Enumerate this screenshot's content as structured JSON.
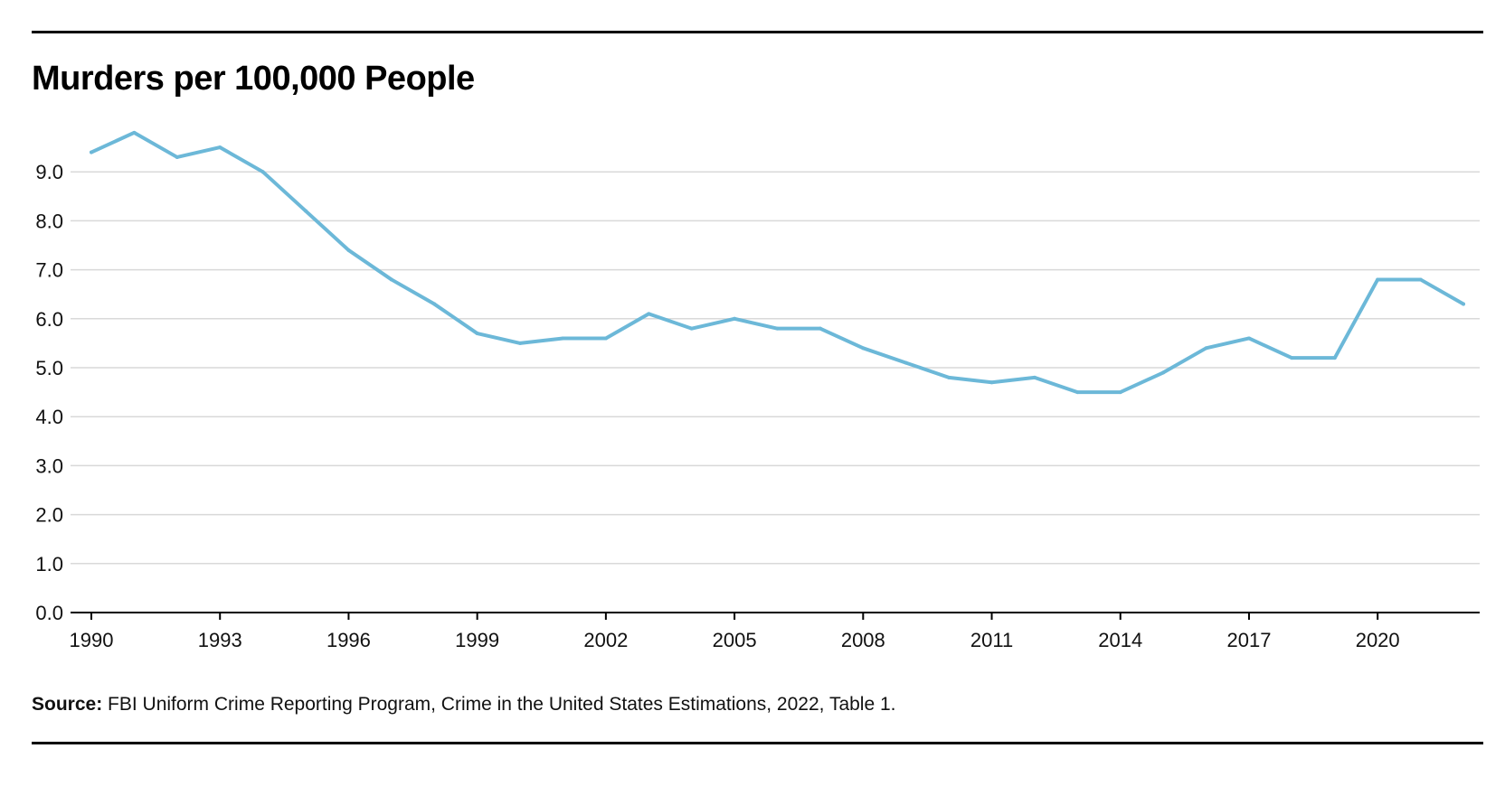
{
  "chart_data": {
    "type": "line",
    "title": "Murders per 100,000 People",
    "xlabel": "",
    "ylabel": "",
    "x": [
      1990,
      1991,
      1992,
      1993,
      1994,
      1995,
      1996,
      1997,
      1998,
      1999,
      2000,
      2001,
      2002,
      2003,
      2004,
      2005,
      2006,
      2007,
      2008,
      2009,
      2010,
      2011,
      2012,
      2013,
      2014,
      2015,
      2016,
      2017,
      2018,
      2019,
      2020,
      2021,
      2022
    ],
    "series": [
      {
        "values": [
          9.4,
          9.8,
          9.3,
          9.5,
          9.0,
          8.2,
          7.4,
          6.8,
          6.3,
          5.7,
          5.5,
          5.6,
          5.6,
          6.1,
          5.8,
          6.0,
          5.8,
          5.8,
          5.4,
          5.1,
          4.8,
          4.7,
          4.8,
          4.5,
          4.5,
          4.9,
          5.4,
          5.6,
          5.2,
          5.2,
          6.8,
          6.8,
          6.3
        ],
        "color": "#6cb8d8"
      }
    ],
    "xlim": [
      1990,
      2022
    ],
    "ylim": [
      0,
      9.0
    ],
    "xticks": [
      "1990",
      "1993",
      "1996",
      "1999",
      "2002",
      "2005",
      "2008",
      "2011",
      "2014",
      "2017",
      "2020"
    ],
    "yticks": [
      "0.0",
      "1.0",
      "2.0",
      "3.0",
      "4.0",
      "5.0",
      "6.0",
      "7.0",
      "8.0",
      "9.0"
    ],
    "grid": true,
    "legend": "none"
  },
  "source": {
    "label": "Source:",
    "text": " FBI Uniform Crime Reporting Program, Crime in the United States Estimations, 2022, Table 1."
  },
  "colors": {
    "line": "#6cb8d8",
    "grid": "#d9d9d9",
    "axis": "#000000",
    "rule": "#000000"
  }
}
